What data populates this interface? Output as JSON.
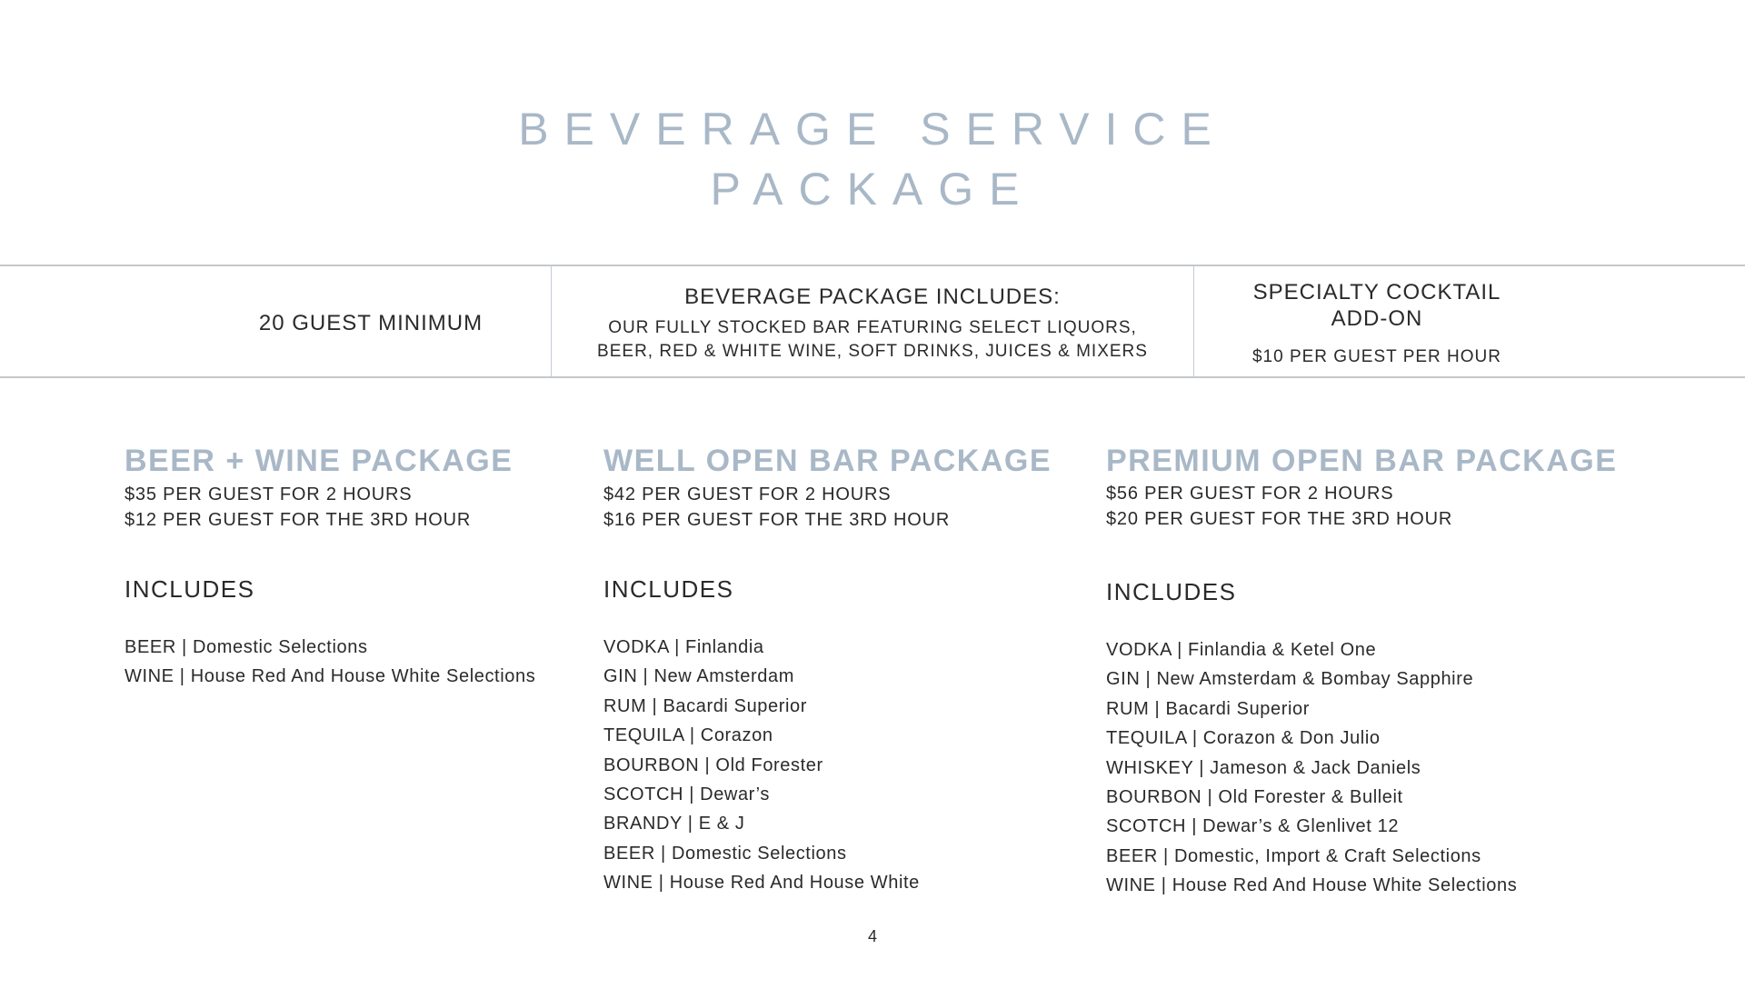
{
  "title": {
    "line1": "BEVERAGE SERVICE",
    "line2": "PACKAGE"
  },
  "info_band": {
    "minimum": "20 GUEST MINIMUM",
    "includes_heading": "BEVERAGE PACKAGE INCLUDES:",
    "includes_line1": "OUR FULLY STOCKED BAR FEATURING SELECT LIQUORS,",
    "includes_line2": "BEER, RED & WHITE WINE, SOFT DRINKS, JUICES & MIXERS",
    "addon_line1": "SPECIALTY COCKTAIL",
    "addon_line2": "ADD-ON",
    "addon_price": "$10 PER GUEST PER HOUR"
  },
  "packages": [
    {
      "name": "BEER + WINE PACKAGE",
      "price1": "$35 PER GUEST FOR 2 HOURS",
      "price2": "$12 PER GUEST FOR THE 3RD HOUR",
      "includes_label": "INCLUDES",
      "items": [
        "BEER | Domestic Selections",
        "WINE | House Red And House White Selections"
      ]
    },
    {
      "name": "WELL OPEN BAR PACKAGE",
      "price1": "$42 PER GUEST FOR 2 HOURS",
      "price2": "$16 PER GUEST FOR THE 3RD HOUR",
      "includes_label": "INCLUDES",
      "items": [
        "VODKA | Finlandia",
        "GIN | New Amsterdam",
        "RUM | Bacardi Superior",
        "TEQUILA | Corazon",
        "BOURBON | Old Forester",
        "SCOTCH | Dewar’s",
        "BRANDY | E & J",
        "BEER | Domestic Selections",
        "WINE | House Red And House White"
      ]
    },
    {
      "name": "PREMIUM OPEN BAR PACKAGE",
      "price1": "$56 PER GUEST FOR 2 HOURS",
      "price2": "$20 PER GUEST FOR THE 3RD HOUR",
      "includes_label": "INCLUDES",
      "items": [
        "VODKA | Finlandia & Ketel One",
        "GIN | New Amsterdam & Bombay Sapphire",
        "RUM | Bacardi Superior",
        "TEQUILA | Corazon & Don Julio",
        "WHISKEY | Jameson & Jack Daniels",
        "BOURBON | Old Forester & Bulleit",
        "SCOTCH | Dewar’s & Glenlivet 12",
        "BEER | Domestic, Import & Craft Selections",
        "WINE | House Red And House White Selections"
      ]
    }
  ],
  "page_number": "4",
  "colors": {
    "accent": "#a9b8c7",
    "text": "#2a2a2a",
    "rule": "#c4c8cc"
  }
}
